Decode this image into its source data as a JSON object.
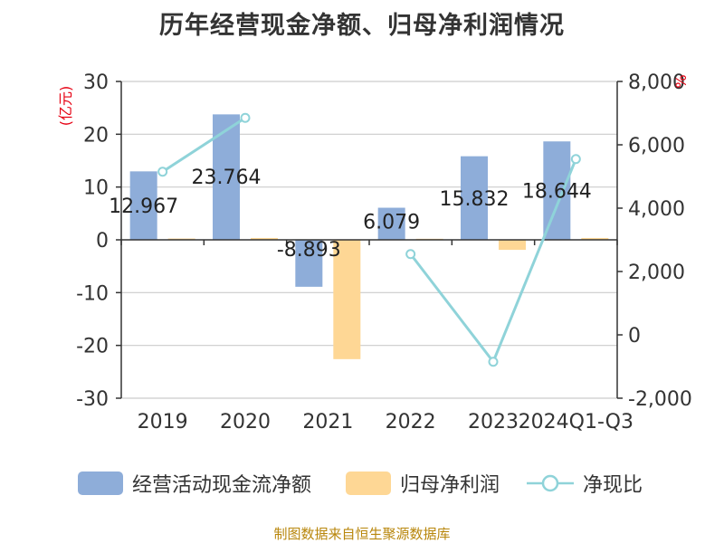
{
  "title": "历年经营现金净额、归母净利润情况",
  "left_unit": "(亿元)",
  "right_unit": "%",
  "source": "制图数据来自恒生聚源数据库",
  "colors": {
    "cash": "#8eadd9",
    "profit": "#fed795",
    "ratio": "#8fd3d9",
    "unit": "#e60012",
    "source": "#b8860b"
  },
  "legend": [
    {
      "label": "经营活动现金流净额",
      "type": "bar",
      "color": "#8eadd9"
    },
    {
      "label": "归母净利润",
      "type": "bar",
      "color": "#fed795"
    },
    {
      "label": "净现比",
      "type": "line",
      "color": "#8fd3d9"
    }
  ],
  "chart_data": {
    "type": "bar",
    "categories": [
      "2019",
      "2020",
      "2021",
      "2022",
      "2023",
      "2024Q1-Q3"
    ],
    "series": [
      {
        "name": "经营活动现金流净额",
        "type": "bar",
        "axis": "left",
        "values": [
          12.967,
          23.764,
          -8.893,
          6.079,
          15.832,
          18.644
        ],
        "labels": [
          "12.967",
          "23.764",
          "-8.893",
          "6.079",
          "15.832",
          "18.644"
        ]
      },
      {
        "name": "归母净利润",
        "type": "bar",
        "axis": "left",
        "values": [
          0.25,
          0.35,
          -22.6,
          0.2,
          -1.9,
          0.35
        ]
      },
      {
        "name": "净现比",
        "type": "line",
        "axis": "right",
        "values": [
          5150,
          6850,
          null,
          2550,
          -850,
          5550
        ]
      }
    ],
    "left_axis": {
      "min": -30,
      "max": 30,
      "ticks": [
        "30",
        "20",
        "10",
        "0",
        "-10",
        "-20",
        "-30"
      ]
    },
    "right_axis": {
      "min": -2000,
      "max": 8000,
      "ticks": [
        "8,000",
        "6,000",
        "4,000",
        "2,000",
        "0",
        "-2,000"
      ]
    },
    "grid": true,
    "legend_position": "bottom"
  }
}
